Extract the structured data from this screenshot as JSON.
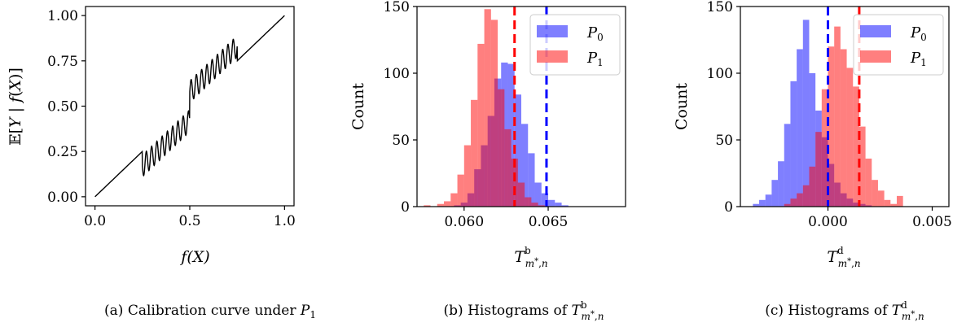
{
  "chart_data": [
    {
      "type": "line",
      "caption": "(a) Calibration curve under P₁",
      "xlabel": "f(X)",
      "ylabel": "𝔼[Y | f(X)]",
      "xlim": [
        -0.05,
        1.05
      ],
      "ylim": [
        -0.05,
        1.05
      ],
      "xticks": [
        "0.0",
        "0.5",
        "1.0"
      ],
      "yticks": [
        "0.00",
        "0.25",
        "0.50",
        "0.75",
        "1.00"
      ],
      "series": [
        {
          "color": "#000000",
          "description_points": {
            "x": [
              0.0,
              0.25,
              0.5,
              0.75,
              1.0
            ],
            "y": [
              0.0,
              0.25,
              0.5,
              0.75,
              1.0
            ]
          },
          "oscillation": {
            "x_from": 0.25,
            "x_to": 0.75,
            "cycles_per_half": 9,
            "amplitude": 0.06,
            "offset_low": -0.08,
            "offset_high": 0.08
          }
        }
      ]
    },
    {
      "type": "histogram",
      "caption": "(b) Histograms of T^b_{m*,n}",
      "xlabel": "T^b_{m*,n}",
      "ylabel": "Count",
      "xlim": [
        0.0572,
        0.0696
      ],
      "ylim": [
        0,
        150
      ],
      "xticks": [
        "0.060",
        "0.065"
      ],
      "yticks": [
        "0",
        "50",
        "100",
        "150"
      ],
      "legend_position": "upper right",
      "series": [
        {
          "name": "P0",
          "color": "#0000ff",
          "bins_start": 0.0594,
          "bin_width": 0.0004,
          "counts": [
            1,
            3,
            10,
            28,
            46,
            68,
            96,
            108,
            107,
            84,
            62,
            40,
            18,
            10,
            5,
            3,
            1
          ],
          "mean_line": 0.0649
        },
        {
          "name": "P1",
          "color": "#ff0000",
          "bins_start": 0.0576,
          "bin_width": 0.0004,
          "counts": [
            1,
            0,
            2,
            4,
            10,
            24,
            46,
            80,
            122,
            148,
            140,
            88,
            58,
            36,
            18,
            7,
            3,
            1
          ],
          "mean_line": 0.063
        }
      ]
    },
    {
      "type": "histogram",
      "caption": "(c) Histograms of T^d_{m*,n}",
      "xlabel": "T^d_{m*,n}",
      "ylabel": "Count",
      "xlim": [
        -0.0042,
        0.0058
      ],
      "ylim": [
        0,
        150
      ],
      "xticks": [
        "0.000",
        "0.005"
      ],
      "yticks": [
        "0",
        "50",
        "100",
        "150"
      ],
      "legend_position": "upper right",
      "series": [
        {
          "name": "P0",
          "color": "#0000ff",
          "bins_start": -0.0036,
          "bin_width": 0.0003,
          "counts": [
            2,
            5,
            9,
            20,
            34,
            62,
            94,
            118,
            140,
            100,
            72,
            52,
            32,
            18,
            10,
            6,
            3,
            2,
            1
          ],
          "mean_line": 0.0
        },
        {
          "name": "P1",
          "color": "#ff0000",
          "bins_start": -0.0021,
          "bin_width": 0.0003,
          "counts": [
            2,
            6,
            10,
            16,
            30,
            56,
            88,
            120,
            135,
            118,
            104,
            90,
            60,
            36,
            20,
            12,
            5,
            2,
            8
          ],
          "mean_line": 0.0015
        }
      ]
    }
  ],
  "legend": {
    "p0": "P",
    "p0_sub": "0",
    "p1": "P",
    "p1_sub": "1"
  }
}
